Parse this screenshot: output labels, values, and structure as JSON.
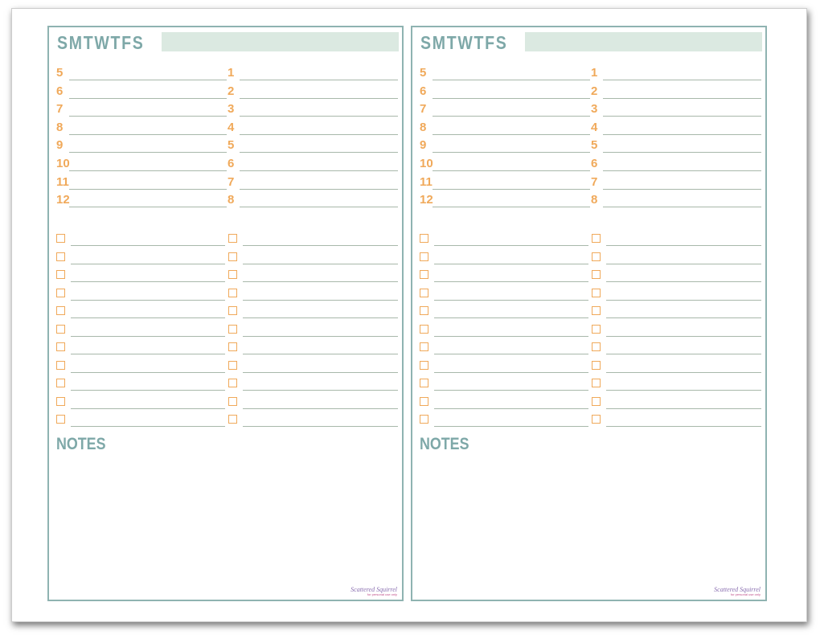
{
  "pages": [
    {
      "days": "SMTWTFS",
      "hours_left": [
        "5",
        "6",
        "7",
        "8",
        "9",
        "10",
        "11",
        "12"
      ],
      "hours_right": [
        "1",
        "2",
        "3",
        "4",
        "5",
        "6",
        "7",
        "8"
      ],
      "checklist_rows": 11,
      "notes_label": "NOTES",
      "logo": {
        "name": "Scattered Squirrel",
        "tagline": "for personal use only"
      }
    },
    {
      "days": "SMTWTFS",
      "hours_left": [
        "5",
        "6",
        "7",
        "8",
        "9",
        "10",
        "11",
        "12"
      ],
      "hours_right": [
        "1",
        "2",
        "3",
        "4",
        "5",
        "6",
        "7",
        "8"
      ],
      "checklist_rows": 11,
      "notes_label": "NOTES",
      "logo": {
        "name": "Scattered Squirrel",
        "tagline": "for personal use only"
      }
    }
  ],
  "colors": {
    "accent_teal": "#7ea8a8",
    "accent_orange": "#f0a95a",
    "bar_green": "#dbe9e1",
    "border": "#8fb3b1"
  }
}
